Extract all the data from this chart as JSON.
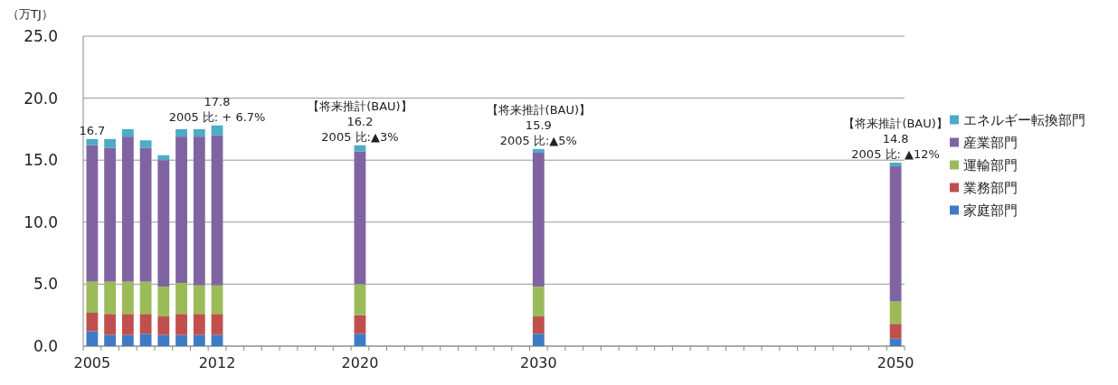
{
  "chart_data": {
    "type": "bar",
    "stacked": true,
    "ylabel": "（万TJ）",
    "categories": [
      "2005",
      null,
      null,
      null,
      null,
      null,
      null,
      "2012",
      null,
      null,
      null,
      null,
      null,
      null,
      null,
      "2020",
      null,
      null,
      null,
      null,
      null,
      null,
      null,
      null,
      null,
      "2030",
      null,
      null,
      null,
      null,
      null,
      null,
      null,
      null,
      null,
      null,
      null,
      null,
      null,
      null,
      null,
      null,
      null,
      null,
      null,
      "2050"
    ],
    "series": [
      {
        "name": "家庭部門",
        "color": "#3d7cc4",
        "values": [
          1.2,
          0.9,
          0.9,
          1.0,
          0.9,
          0.9,
          0.9,
          0.9,
          null,
          null,
          null,
          null,
          null,
          null,
          null,
          1.0,
          null,
          null,
          null,
          null,
          null,
          null,
          null,
          null,
          null,
          1.0,
          null,
          null,
          null,
          null,
          null,
          null,
          null,
          null,
          null,
          null,
          null,
          null,
          null,
          null,
          null,
          null,
          null,
          null,
          null,
          0.6
        ]
      },
      {
        "name": "業務部門",
        "color": "#c0504d",
        "values": [
          1.5,
          1.7,
          1.7,
          1.6,
          1.5,
          1.7,
          1.7,
          1.7,
          null,
          null,
          null,
          null,
          null,
          null,
          null,
          1.5,
          null,
          null,
          null,
          null,
          null,
          null,
          null,
          null,
          null,
          1.4,
          null,
          null,
          null,
          null,
          null,
          null,
          null,
          null,
          null,
          null,
          null,
          null,
          null,
          null,
          null,
          null,
          null,
          null,
          null,
          1.2
        ]
      },
      {
        "name": "運輸部門",
        "color": "#9bbb59",
        "values": [
          2.5,
          2.6,
          2.6,
          2.6,
          2.4,
          2.5,
          2.3,
          2.3,
          null,
          null,
          null,
          null,
          null,
          null,
          null,
          2.5,
          null,
          null,
          null,
          null,
          null,
          null,
          null,
          null,
          null,
          2.4,
          null,
          null,
          null,
          null,
          null,
          null,
          null,
          null,
          null,
          null,
          null,
          null,
          null,
          null,
          null,
          null,
          null,
          null,
          null,
          1.8
        ]
      },
      {
        "name": "産業部門",
        "color": "#8064a2",
        "values": [
          11.0,
          10.8,
          11.7,
          10.8,
          10.2,
          11.8,
          12.0,
          12.1,
          null,
          null,
          null,
          null,
          null,
          null,
          null,
          10.7,
          null,
          null,
          null,
          null,
          null,
          null,
          null,
          null,
          null,
          10.8,
          null,
          null,
          null,
          null,
          null,
          null,
          null,
          null,
          null,
          null,
          null,
          null,
          null,
          null,
          null,
          null,
          null,
          null,
          null,
          10.9
        ]
      },
      {
        "name": "エネルギー転換部門",
        "color": "#4bacc6",
        "values": [
          0.5,
          0.7,
          0.6,
          0.6,
          0.4,
          0.6,
          0.6,
          0.8,
          null,
          null,
          null,
          null,
          null,
          null,
          null,
          0.5,
          null,
          null,
          null,
          null,
          null,
          null,
          null,
          null,
          null,
          0.3,
          null,
          null,
          null,
          null,
          null,
          null,
          null,
          null,
          null,
          null,
          null,
          null,
          null,
          null,
          null,
          null,
          null,
          null,
          null,
          0.3
        ]
      }
    ],
    "ylim": [
      0,
      25
    ],
    "yticks": [
      {
        "value": 0,
        "label": "0.0"
      },
      {
        "value": 5,
        "label": "5.0"
      },
      {
        "value": 10,
        "label": "10.0"
      },
      {
        "value": 15,
        "label": "15.0"
      },
      {
        "value": 20,
        "label": "20.0"
      },
      {
        "value": 25,
        "label": "25.0"
      }
    ],
    "grid": "y",
    "legend": "right",
    "annotations": [
      {
        "text": "16.7",
        "x": "2005",
        "y": 16.7
      },
      {
        "text": "17.8",
        "x": "2012",
        "y": 17.8
      },
      {
        "text": "2005 比: + 6.7%",
        "x": "2012",
        "y": 17.8
      },
      {
        "text": "【将来推計(BAU)】",
        "x": "2020",
        "y": 16.2
      },
      {
        "text": "16.2",
        "x": "2020",
        "y": 16.2
      },
      {
        "text": "2005 比:▲3%",
        "x": "2020",
        "y": 16.2
      },
      {
        "text": "【将来推計(BAU)】",
        "x": "2030",
        "y": 15.9
      },
      {
        "text": "15.9",
        "x": "2030",
        "y": 15.9
      },
      {
        "text": "2005 比:▲5%",
        "x": "2030",
        "y": 15.9
      },
      {
        "text": "【将来推計(BAU)】",
        "x": "2050",
        "y": 14.8
      },
      {
        "text": "14.8",
        "x": "2050",
        "y": 14.8
      },
      {
        "text": "2005 比: ▲12%",
        "x": "2050",
        "y": 14.8
      }
    ]
  }
}
